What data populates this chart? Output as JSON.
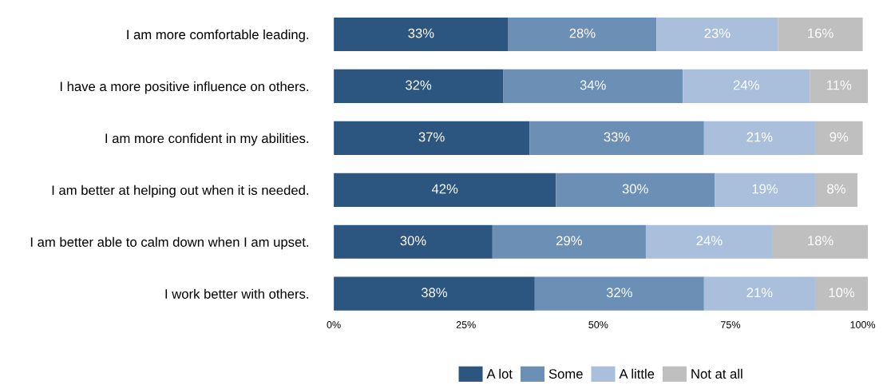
{
  "chart_data": {
    "type": "bar",
    "orientation": "horizontal",
    "stacked": true,
    "categories": [
      "I am more comfortable leading.",
      "I have a more positive influence on others.",
      "I am more confident in my abilities.",
      "I am better at helping out when it is needed.",
      "I am better able to calm down when I am upset.",
      "I work better with others."
    ],
    "series": [
      {
        "name": "A lot",
        "color": "#2c5580",
        "values": [
          33,
          32,
          37,
          42,
          30,
          38
        ],
        "value_labels": [
          "33%",
          "32%",
          "37%",
          "42%",
          "30%",
          "38%"
        ]
      },
      {
        "name": "Some",
        "color": "#6b8fb5",
        "values": [
          28,
          34,
          33,
          30,
          29,
          32
        ],
        "value_labels": [
          "28%",
          "34%",
          "33%",
          "30%",
          "29%",
          "32%"
        ]
      },
      {
        "name": "A little",
        "color": "#a9bfdc",
        "values": [
          23,
          24,
          21,
          19,
          24,
          21
        ],
        "value_labels": [
          "23%",
          "24%",
          "21%",
          "19%",
          "24%",
          "21%"
        ]
      },
      {
        "name": "Not at all",
        "color": "#bfbfbf",
        "values": [
          16,
          11,
          9,
          8,
          18,
          10
        ],
        "value_labels": [
          "16%",
          "11%",
          "9%",
          "8%",
          "18%",
          "10%"
        ]
      }
    ],
    "xlim": [
      0,
      101
    ],
    "xticks": [
      {
        "value": 0,
        "label": "0%"
      },
      {
        "value": 25,
        "label": "25%"
      },
      {
        "value": 50,
        "label": "50%"
      },
      {
        "value": 75,
        "label": "75%"
      },
      {
        "value": 100,
        "label": "100%"
      }
    ],
    "legend": "bottom",
    "grid": false
  }
}
